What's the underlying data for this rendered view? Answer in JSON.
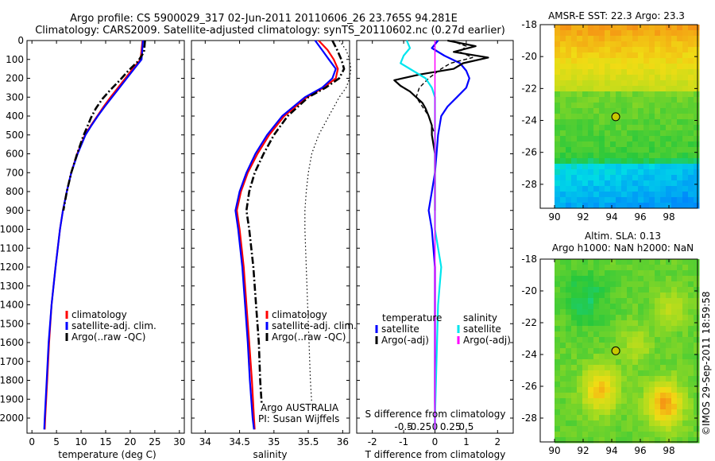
{
  "header": {
    "line1": "Argo profile: CS 5900029_317 02-Jun-2011 20110606_26 23.765S 94.281E",
    "line2": "Climatology: CARS2009. Satellite-adjusted climatology: synTS_20110602.nc (0.27d earlier)"
  },
  "side_stamp": "©IMOS 29-Sep-2011 18:59:58",
  "colors": {
    "climatology": "#ff0000",
    "satellite": "#0000ff",
    "argo": "#000000",
    "sal_satellite": "#00e5ee",
    "sal_argo": "#ff00ff"
  },
  "chart_data": [
    {
      "type": "line",
      "id": "temperature",
      "xlabel": "temperature (deg C)",
      "xlim": [
        -1,
        31
      ],
      "ylim": [
        0,
        2080
      ],
      "y_reversed": true,
      "xticks": [
        0,
        5,
        10,
        15,
        20,
        25,
        30
      ],
      "yticks": [
        0,
        100,
        200,
        300,
        400,
        500,
        600,
        700,
        800,
        900,
        1000,
        1100,
        1200,
        1300,
        1400,
        1500,
        1600,
        1700,
        1800,
        1900,
        2000
      ],
      "legend": [
        "climatology",
        "satellite-adj. clim.",
        "Argo(..raw -QC)"
      ],
      "series": [
        {
          "name": "climatology",
          "style": "red",
          "y": [
            0,
            100,
            150,
            200,
            250,
            300,
            350,
            400,
            450,
            500,
            600,
            700,
            800,
            900,
            1000,
            1200,
            1400,
            1600,
            1800,
            2000,
            2060
          ],
          "x": [
            22.5,
            22.1,
            20.5,
            19.0,
            17.5,
            16.0,
            14.6,
            13.3,
            12.0,
            10.8,
            9.2,
            8.0,
            7.1,
            6.3,
            5.7,
            4.8,
            4.0,
            3.5,
            3.1,
            2.7,
            2.6
          ]
        },
        {
          "name": "satellite-adj. clim.",
          "style": "blue",
          "y": [
            0,
            100,
            150,
            200,
            250,
            300,
            350,
            400,
            450,
            500,
            600,
            700,
            800,
            900,
            1000,
            1200,
            1400,
            1600,
            1800,
            2000,
            2060
          ],
          "x": [
            22.6,
            22.3,
            20.8,
            19.3,
            17.8,
            16.3,
            14.8,
            13.4,
            12.1,
            10.9,
            9.3,
            8.0,
            7.1,
            6.3,
            5.7,
            4.8,
            4.0,
            3.4,
            3.0,
            2.6,
            2.5
          ]
        },
        {
          "name": "Argo(..raw -QC)",
          "style": "black-dashdot",
          "y": [
            0,
            60,
            110,
            160,
            210,
            260,
            310,
            360,
            410,
            460,
            510,
            600,
            700,
            800,
            900
          ],
          "x": [
            23.0,
            22.8,
            21.6,
            19.6,
            17.9,
            16.0,
            14.3,
            13.0,
            12.0,
            11.2,
            10.4,
            9.2,
            8.0,
            7.1,
            6.4
          ]
        }
      ]
    },
    {
      "type": "line",
      "id": "salinity",
      "xlabel": "salinity",
      "xlim": [
        33.8,
        36.1
      ],
      "ylim": [
        0,
        2080
      ],
      "y_reversed": true,
      "xticks": [
        34,
        34.5,
        35,
        35.5,
        36
      ],
      "legend": [
        "climatology",
        "satellite-adj. clim.",
        "Argo(..raw -QC)"
      ],
      "annotations": [
        "Argo AUSTRALIA",
        "PI: Susan Wijffels"
      ],
      "series": [
        {
          "name": "climatology",
          "style": "red",
          "y": [
            0,
            50,
            100,
            150,
            200,
            250,
            300,
            400,
            500,
            600,
            700,
            800,
            900,
            1000,
            1200,
            1400,
            1600,
            1800,
            2000,
            2060
          ],
          "x": [
            35.65,
            35.78,
            35.87,
            35.93,
            35.9,
            35.72,
            35.48,
            35.15,
            34.93,
            34.76,
            34.62,
            34.52,
            34.46,
            34.5,
            34.56,
            34.6,
            34.64,
            34.68,
            34.71,
            34.72
          ]
        },
        {
          "name": "satellite-adj. clim.",
          "style": "blue",
          "y": [
            0,
            50,
            100,
            150,
            200,
            250,
            300,
            400,
            500,
            600,
            700,
            800,
            900,
            1000,
            1200,
            1400,
            1600,
            1800,
            2000,
            2060
          ],
          "x": [
            35.6,
            35.7,
            35.8,
            35.9,
            35.85,
            35.7,
            35.45,
            35.12,
            34.9,
            34.73,
            34.6,
            34.5,
            34.44,
            34.48,
            34.54,
            34.58,
            34.62,
            34.65,
            34.69,
            34.71
          ]
        },
        {
          "name": "Argo(..raw -QC)",
          "style": "black-dashdot",
          "y": [
            0,
            50,
            100,
            150,
            200,
            250,
            300,
            400,
            500,
            600,
            700,
            800,
            900,
            1000,
            1200,
            1400,
            1600,
            1800,
            1920
          ],
          "x": [
            35.85,
            35.92,
            35.98,
            36.02,
            35.95,
            35.75,
            35.5,
            35.2,
            35.0,
            34.85,
            34.72,
            34.64,
            34.6,
            34.64,
            34.7,
            34.74,
            34.78,
            34.8,
            34.82
          ]
        },
        {
          "name": "raw",
          "style": "black-dotted",
          "y": [
            0,
            50,
            100,
            150,
            200,
            250,
            300,
            400,
            500,
            600,
            700,
            800,
            900,
            1000,
            1200,
            1400,
            1600,
            1800,
            1920
          ],
          "x": [
            35.95,
            36.05,
            36.1,
            36.12,
            36.1,
            36.05,
            35.95,
            35.8,
            35.65,
            35.55,
            35.5,
            35.47,
            35.45,
            35.45,
            35.47,
            35.49,
            35.51,
            35.53,
            35.55
          ]
        }
      ]
    },
    {
      "type": "line",
      "id": "differences",
      "xlabel": "T difference from climatology",
      "xlabel_top": "S difference from climatology",
      "xlim": [
        -2.5,
        2.5
      ],
      "ylim": [
        0,
        2080
      ],
      "y_reversed": true,
      "xticks": [
        -2,
        -1,
        0,
        1,
        2
      ],
      "xticks_top": [
        "-0.5",
        "-0.25",
        "0",
        "0.25",
        "0.5"
      ],
      "legend_temperature": {
        "title": "temperature",
        "items": [
          "satellite",
          "Argo(-adj)"
        ]
      },
      "legend_salinity": {
        "title": "salinity",
        "items": [
          "satellite",
          "Argo(-adj)"
        ]
      },
      "series": [
        {
          "name": "T satellite",
          "style": "blue",
          "y": [
            0,
            40,
            80,
            120,
            160,
            200,
            250,
            300,
            350,
            400,
            500,
            600,
            700,
            800,
            900,
            1000,
            1200,
            1500,
            2000,
            2060
          ],
          "x": [
            0.1,
            -0.1,
            0.3,
            0.8,
            1.0,
            1.1,
            1.0,
            0.7,
            0.4,
            0.2,
            0.1,
            0.05,
            0.0,
            -0.1,
            -0.2,
            -0.1,
            0.0,
            0.0,
            0.0,
            0.0
          ]
        },
        {
          "name": "T Argo(-adj)",
          "style": "black",
          "y": [
            0,
            30,
            60,
            90,
            120,
            150,
            180,
            210,
            240,
            270,
            300,
            330,
            360,
            400,
            450,
            500,
            600,
            700,
            800,
            900
          ],
          "x": [
            0.4,
            1.3,
            0.6,
            1.7,
            0.9,
            0.6,
            -0.5,
            -1.3,
            -1.1,
            -0.8,
            -0.6,
            -0.4,
            -0.3,
            -0.2,
            -0.1,
            -0.1,
            0.0,
            0.0,
            0.0,
            0.0
          ]
        },
        {
          "name": "T Argo raw",
          "style": "black-dashed",
          "y": [
            0,
            30,
            60,
            90,
            120,
            150,
            200,
            250,
            300,
            350,
            400,
            500
          ],
          "x": [
            0.5,
            1.0,
            0.8,
            1.2,
            0.5,
            0.2,
            -0.2,
            -0.5,
            -0.6,
            -0.4,
            -0.2,
            0.0
          ]
        },
        {
          "name": "S satellite",
          "style": "cyan",
          "y": [
            0,
            40,
            80,
            120,
            160,
            200,
            250,
            300,
            400,
            500,
            600,
            800,
            1000,
            1200,
            1400,
            2000,
            2060
          ],
          "x": [
            -0.9,
            -0.8,
            -1.0,
            -1.1,
            -0.7,
            -0.3,
            -0.1,
            0.0,
            0.0,
            0.0,
            0.0,
            0.0,
            0.0,
            0.2,
            0.1,
            0.0,
            0.0
          ]
        },
        {
          "name": "S Argo(-adj)",
          "style": "magenta",
          "y": [
            0,
            2060
          ],
          "x": [
            0.0,
            0.0
          ]
        }
      ]
    },
    {
      "type": "heatmap",
      "id": "sst_map",
      "title": "AMSR-E SST: 22.3 Argo: 23.3",
      "xlim": [
        89,
        100
      ],
      "ylim": [
        -29.5,
        -18
      ],
      "xticks": [
        90,
        92,
        94,
        96,
        98
      ],
      "yticks": [
        -18,
        -20,
        -22,
        -24,
        -26,
        -28
      ],
      "marker": {
        "lon": 94.28,
        "lat": -23.77
      },
      "data_extent_lon": [
        90,
        100
      ]
    },
    {
      "type": "heatmap",
      "id": "sla_map",
      "title_line1": "Altim. SLA: 0.13",
      "title_line2": "Argo h1000: NaN h2000: NaN",
      "xlim": [
        89,
        100
      ],
      "ylim": [
        -29.5,
        -18
      ],
      "xticks": [
        90,
        92,
        94,
        96,
        98
      ],
      "yticks": [
        -18,
        -20,
        -22,
        -24,
        -26,
        -28
      ],
      "marker": {
        "lon": 94.28,
        "lat": -23.77
      },
      "data_extent_lon": [
        90,
        100
      ]
    }
  ]
}
